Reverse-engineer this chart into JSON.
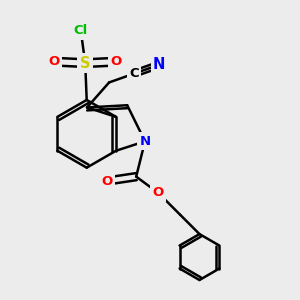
{
  "background_color": "#ececec",
  "atom_colors": {
    "C": "#000000",
    "N": "#0000ff",
    "O": "#ff0000",
    "S": "#cccc00",
    "Cl": "#00bb00"
  },
  "bond_color": "#000000",
  "bond_width": 1.8,
  "figsize": [
    3.0,
    3.0
  ],
  "dpi": 100
}
